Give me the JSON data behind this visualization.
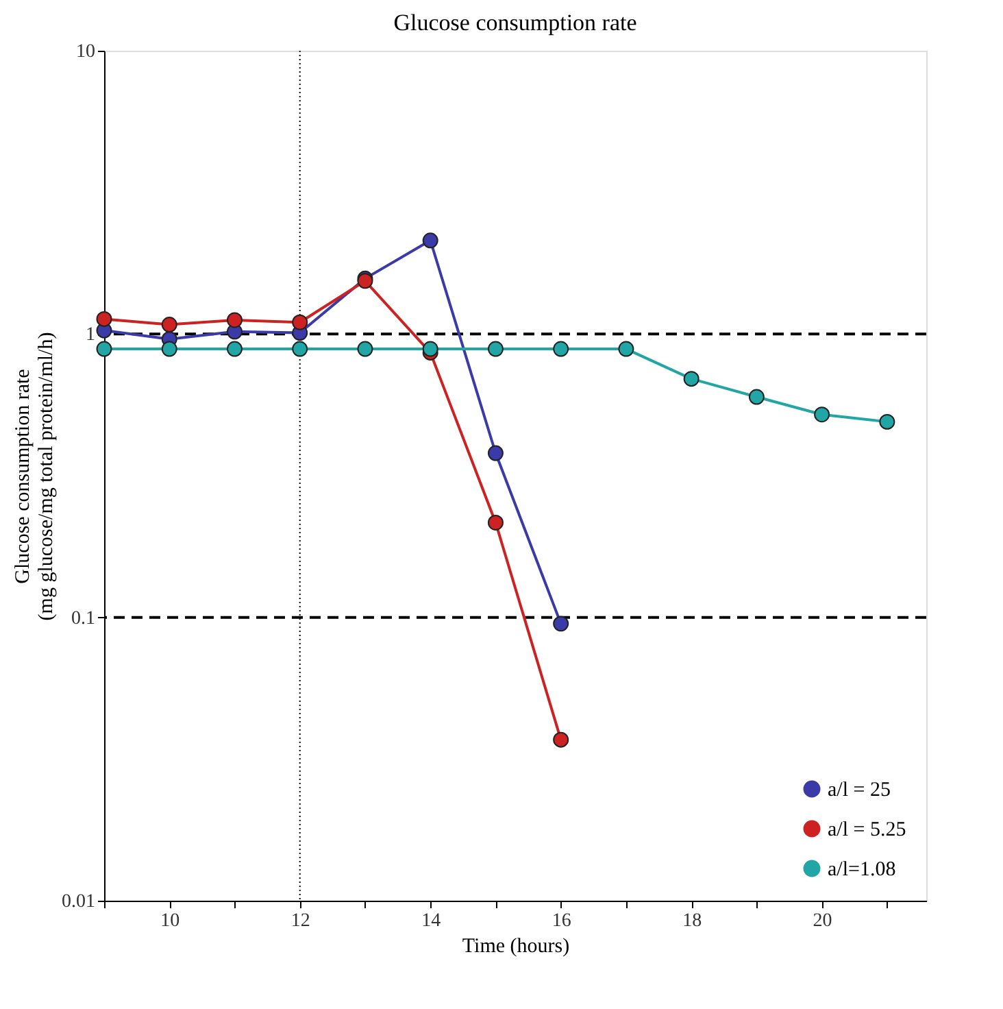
{
  "chart_data": {
    "type": "line",
    "title": "Glucose consumption rate",
    "xlabel": "Time (hours)",
    "ylabel": "Glucose consumption rate\n(mg glucose/mg total protein/ml/h)",
    "x": [
      9,
      10,
      11,
      12,
      13,
      14,
      15,
      16
    ],
    "series": [
      {
        "name": "a/l = 25",
        "color": "#3a3aa8",
        "values": [
          1.03,
          0.96,
          1.02,
          1.01,
          1.57,
          2.14,
          0.38,
          0.095
        ]
      },
      {
        "name": "a/l = 5.25",
        "color": "#cc2222",
        "values": [
          1.13,
          1.08,
          1.12,
          1.1,
          1.54,
          0.86,
          0.216,
          0.037
        ]
      },
      {
        "name": "a/l=1.08",
        "color": "#22a5a5",
        "x": [
          9,
          10,
          11,
          12,
          13,
          14,
          15,
          16,
          17,
          18,
          19,
          20,
          21
        ],
        "values": [
          0.886,
          0.886,
          0.886,
          0.886,
          0.886,
          0.886,
          0.886,
          0.886,
          0.886,
          0.695,
          0.6,
          0.52,
          0.49
        ]
      }
    ],
    "log": "y",
    "xlim": [
      9,
      21.6
    ],
    "ylim": [
      0.01,
      10
    ],
    "xticks": [
      {
        "value": 9,
        "label": null
      },
      10,
      {
        "value": 11,
        "label": null
      },
      12,
      {
        "value": 13,
        "label": null
      },
      14,
      {
        "value": 15,
        "label": null
      },
      16,
      {
        "value": 17,
        "label": null
      },
      18,
      {
        "value": 19,
        "label": null
      },
      20,
      {
        "value": 21,
        "label": null
      }
    ],
    "yticks": [
      0.01,
      0.1,
      1,
      10
    ],
    "ref_lines": [
      {
        "axis": "y",
        "value": 1,
        "line_style": "dashed",
        "color": "#000000"
      },
      {
        "axis": "y",
        "value": 0.1,
        "line_style": "dashed",
        "color": "#000000"
      },
      {
        "axis": "x",
        "value": 12,
        "line_style": "dotted",
        "color": "#000000"
      }
    ],
    "marker": "circle",
    "line_style": "solid",
    "grid": false,
    "legend": "bottom right"
  }
}
